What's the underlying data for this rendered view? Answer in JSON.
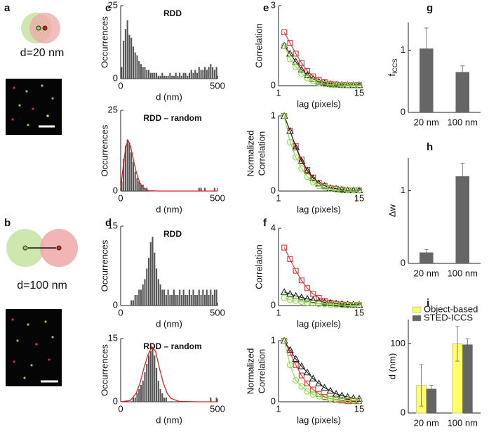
{
  "schematics": [
    {
      "label": "a",
      "caption": "d=20 nm"
    },
    {
      "label": "b",
      "caption": "d=100 nm"
    }
  ],
  "chart_data": [
    {
      "type": "histogram",
      "label": "c",
      "title": "RDD",
      "xlabel": "d (nm)",
      "ylabel": "Occurrences",
      "color": "#555555",
      "bins": [
        0,
        10,
        20,
        30,
        40,
        50,
        60,
        70,
        80,
        90,
        100,
        110,
        120,
        130,
        140,
        150,
        160,
        170,
        180,
        190,
        200,
        210,
        220,
        230,
        240,
        250,
        260,
        270,
        280,
        290,
        300,
        310,
        320,
        330,
        340,
        350,
        360,
        370,
        380,
        390,
        400,
        410,
        420,
        430,
        440,
        450,
        460,
        470,
        480,
        490,
        500
      ],
      "values": [
        4,
        13,
        17,
        20,
        15,
        14,
        11,
        9,
        8,
        6,
        5,
        4,
        4,
        3,
        3,
        2,
        2,
        2,
        2,
        1,
        1,
        2,
        1,
        1,
        1,
        2,
        1,
        1,
        2,
        1,
        2,
        1,
        2,
        2,
        1,
        2,
        3,
        2,
        3,
        2,
        4,
        3,
        3,
        4,
        3,
        4,
        5,
        4,
        3,
        4
      ],
      "xlim": [
        0,
        500
      ],
      "ylim": [
        0,
        25
      ],
      "xticks": [
        0,
        500
      ],
      "yticks": [
        0,
        25
      ]
    },
    {
      "type": "histogram",
      "title": "RDD – random",
      "xlabel": "d (nm)",
      "ylabel": "Occurrences",
      "color": "#555555",
      "bins": [
        0,
        10,
        20,
        30,
        40,
        50,
        60,
        70,
        80,
        90,
        100,
        110,
        120,
        130,
        140,
        150,
        160,
        170,
        180,
        190,
        200,
        210,
        220,
        230,
        240,
        250,
        260,
        270,
        280,
        290,
        300,
        310,
        320,
        330,
        340,
        350,
        360,
        370,
        380,
        390,
        400,
        410,
        420,
        430,
        440,
        450,
        460,
        470,
        480,
        490,
        500
      ],
      "values": [
        3,
        10,
        14,
        16,
        15,
        12,
        9,
        6,
        4,
        3,
        2,
        2,
        1,
        1,
        0,
        0,
        0,
        0,
        0,
        0,
        0,
        0,
        0,
        0,
        0,
        0,
        0,
        0,
        0,
        0,
        0,
        0,
        0,
        0,
        0,
        0,
        0,
        0,
        0,
        0,
        1,
        1,
        0,
        1,
        0,
        0,
        0,
        0,
        1,
        0
      ],
      "fit": {
        "color": "#dd2222",
        "x": [
          0,
          10,
          20,
          30,
          40,
          50,
          60,
          70,
          80,
          90,
          100,
          110,
          120,
          130,
          140,
          150,
          200,
          300,
          500
        ],
        "values": [
          1,
          6,
          11,
          14.5,
          15.5,
          14,
          11.5,
          8.5,
          6,
          4,
          2.5,
          1.5,
          0.8,
          0.4,
          0.2,
          0.1,
          0,
          0,
          0
        ]
      },
      "xlim": [
        0,
        500
      ],
      "ylim": [
        0,
        25
      ],
      "xticks": [
        0,
        500
      ],
      "yticks": [
        0,
        25
      ]
    },
    {
      "type": "histogram",
      "label": "d",
      "title": "RDD",
      "xlabel": "d (nm)",
      "ylabel": "Occurrences",
      "color": "#555555",
      "bins": [
        0,
        10,
        20,
        30,
        40,
        50,
        60,
        70,
        80,
        90,
        100,
        110,
        120,
        130,
        140,
        150,
        160,
        170,
        180,
        190,
        200,
        210,
        220,
        230,
        240,
        250,
        260,
        270,
        280,
        290,
        300,
        310,
        320,
        330,
        340,
        350,
        360,
        370,
        380,
        390,
        400,
        410,
        420,
        430,
        440,
        450,
        460,
        470,
        480,
        490,
        500
      ],
      "values": [
        0,
        0,
        0,
        0,
        0,
        1,
        1,
        2,
        2,
        3,
        3,
        4,
        5,
        7,
        9,
        12,
        13,
        10,
        7,
        5,
        4,
        3,
        3,
        2,
        3,
        2,
        2,
        3,
        2,
        2,
        3,
        2,
        3,
        2,
        2,
        3,
        2,
        3,
        2,
        2,
        3,
        2,
        3,
        2,
        3,
        2,
        3,
        2,
        3,
        3
      ],
      "xlim": [
        0,
        500
      ],
      "ylim": [
        0,
        15
      ],
      "xticks": [
        0,
        500
      ],
      "yticks": [
        0,
        15
      ]
    },
    {
      "type": "histogram",
      "title": "RDD – random",
      "xlabel": "d (nm)",
      "ylabel": "Occurrences",
      "color": "#555555",
      "bins": [
        0,
        10,
        20,
        30,
        40,
        50,
        60,
        70,
        80,
        90,
        100,
        110,
        120,
        130,
        140,
        150,
        160,
        170,
        180,
        190,
        200,
        210,
        220,
        230,
        240,
        250,
        260,
        270,
        280,
        290,
        300,
        310,
        320,
        330,
        340,
        350,
        360,
        370,
        380,
        390,
        400,
        410,
        420,
        430,
        440,
        450,
        460,
        470,
        480,
        490,
        500
      ],
      "values": [
        0,
        0,
        0,
        0,
        0,
        0,
        1,
        1,
        2,
        3,
        4,
        5,
        7,
        9,
        11,
        12,
        13,
        11,
        8,
        5,
        3,
        2,
        1,
        1,
        0,
        0,
        0,
        0,
        0,
        0,
        0,
        0,
        0,
        0,
        0,
        0,
        0,
        0,
        0,
        0,
        0,
        0,
        0,
        0,
        0,
        0,
        1,
        0,
        0,
        1
      ],
      "fit": {
        "color": "#dd2222",
        "x": [
          0,
          50,
          80,
          100,
          120,
          140,
          160,
          180,
          200,
          220,
          240,
          260,
          300,
          400,
          500
        ],
        "values": [
          0,
          0.3,
          2,
          4.5,
          8,
          11,
          13,
          12,
          8,
          4.5,
          2,
          0.8,
          0.1,
          0,
          0
        ]
      },
      "xlim": [
        0,
        500
      ],
      "ylim": [
        0,
        15
      ],
      "xticks": [
        0,
        500
      ],
      "yticks": [
        0,
        15
      ]
    },
    {
      "type": "line",
      "label": "e",
      "xlabel": "lag (pixels)",
      "ylabel": [
        "Correlation"
      ],
      "x": [
        2,
        3,
        4,
        5,
        6,
        7,
        8,
        9,
        10,
        11,
        12,
        13,
        14,
        15
      ],
      "series": [
        {
          "color": "#dd3333",
          "marker": "square",
          "values": [
            2.0,
            1.6,
            1.2,
            0.85,
            0.55,
            0.35,
            0.22,
            0.13,
            0.08,
            0.05,
            0.03,
            0.02,
            0.02,
            0.02
          ]
        },
        {
          "color": "#222222",
          "marker": "triangle",
          "values": [
            1.5,
            1.2,
            0.9,
            0.6,
            0.4,
            0.25,
            0.15,
            0.1,
            0.06,
            0.04,
            0.03,
            0.02,
            0.02,
            0.02
          ]
        },
        {
          "color": "#88dd44",
          "marker": "circle",
          "values": [
            1.5,
            1.0,
            0.7,
            0.45,
            0.28,
            0.17,
            0.1,
            0.06,
            0.04,
            0.03,
            0.02,
            0.02,
            0.01,
            0.01
          ]
        }
      ],
      "xlim": [
        1,
        15
      ],
      "ylim": [
        0,
        3
      ],
      "xticks": [
        1,
        15
      ],
      "yticks": [
        0,
        3
      ]
    },
    {
      "type": "line",
      "xlabel": "lag (pixels)",
      "ylabel": [
        "Normalized",
        "Correlation"
      ],
      "x": [
        2,
        3,
        4,
        5,
        6,
        7,
        8,
        9,
        10,
        11,
        12,
        13,
        14,
        15
      ],
      "series": [
        {
          "color": "#dd3333",
          "marker": "square",
          "values": [
            1,
            0.8,
            0.6,
            0.42,
            0.28,
            0.18,
            0.11,
            0.07,
            0.04,
            0.03,
            0.02,
            0.01,
            0.01,
            0.01
          ]
        },
        {
          "color": "#222222",
          "marker": "triangle",
          "values": [
            1,
            0.8,
            0.58,
            0.4,
            0.27,
            0.17,
            0.1,
            0.07,
            0.04,
            0.03,
            0.02,
            0.01,
            0.01,
            0.01
          ]
        },
        {
          "color": "#88dd44",
          "marker": "circle",
          "values": [
            1,
            0.65,
            0.45,
            0.3,
            0.19,
            0.12,
            0.07,
            0.05,
            0.03,
            0.02,
            0.01,
            0.01,
            0.01,
            0.01
          ]
        }
      ],
      "xlim": [
        1,
        15
      ],
      "ylim": [
        0,
        1
      ],
      "xticks": [
        1,
        15
      ],
      "yticks": [
        0,
        1
      ]
    },
    {
      "type": "line",
      "label": "f",
      "xlabel": "lag (pixels)",
      "ylabel": [
        "Correlation"
      ],
      "x": [
        2,
        3,
        4,
        5,
        6,
        7,
        8,
        9,
        10,
        11,
        12,
        13,
        14,
        15
      ],
      "series": [
        {
          "color": "#dd3333",
          "marker": "square",
          "values": [
            3.0,
            2.4,
            1.8,
            1.3,
            0.9,
            0.6,
            0.4,
            0.25,
            0.15,
            0.1,
            0.06,
            0.04,
            0.03,
            0.02
          ]
        },
        {
          "color": "#222222",
          "marker": "triangle",
          "values": [
            0.7,
            0.6,
            0.5,
            0.42,
            0.35,
            0.28,
            0.22,
            0.17,
            0.13,
            0.1,
            0.08,
            0.06,
            0.05,
            0.04
          ]
        },
        {
          "color": "#88dd44",
          "marker": "circle",
          "values": [
            0.4,
            0.3,
            0.25,
            0.2,
            0.15,
            0.12,
            0.09,
            0.07,
            0.05,
            0.04,
            0.03,
            0.02,
            0.02,
            0.02
          ]
        }
      ],
      "xlim": [
        1,
        15
      ],
      "ylim": [
        0,
        4
      ],
      "xticks": [
        1,
        15
      ],
      "yticks": [
        0,
        4
      ]
    },
    {
      "type": "line",
      "xlabel": "lag (pixels)",
      "ylabel": [
        "Normalized",
        "Correlation"
      ],
      "x": [
        2,
        3,
        4,
        5,
        6,
        7,
        8,
        9,
        10,
        11,
        12,
        13,
        14,
        15
      ],
      "series": [
        {
          "color": "#dd3333",
          "marker": "square",
          "values": [
            1,
            0.8,
            0.6,
            0.43,
            0.3,
            0.2,
            0.13,
            0.08,
            0.05,
            0.03,
            0.02,
            0.01,
            0.01,
            0.01
          ]
        },
        {
          "color": "#222222",
          "marker": "triangle",
          "values": [
            1,
            0.85,
            0.7,
            0.58,
            0.48,
            0.38,
            0.3,
            0.23,
            0.18,
            0.13,
            0.1,
            0.08,
            0.06,
            0.05
          ]
        },
        {
          "color": "#88dd44",
          "marker": "circle",
          "values": [
            1,
            0.6,
            0.35,
            0.25,
            0.17,
            0.12,
            0.09,
            0.07,
            0.05,
            0.04,
            0.03,
            0.03,
            0.02,
            0.02
          ]
        }
      ],
      "xlim": [
        1,
        15
      ],
      "ylim": [
        0,
        1
      ],
      "xticks": [
        1,
        15
      ],
      "yticks": [
        0,
        1
      ]
    },
    {
      "type": "bar",
      "label": "g",
      "ylabel": {
        "main": "f",
        "sub": "ICCS"
      },
      "categories": [
        "20 nm",
        "100 nm"
      ],
      "values": [
        1.03,
        0.65
      ],
      "errors": [
        0.33,
        0.1
      ],
      "color": "#666666",
      "ylim": [
        0,
        1.45
      ],
      "yticks": [
        0,
        1
      ]
    },
    {
      "type": "bar",
      "label": "h",
      "ylabel": "Δw",
      "categories": [
        "20 nm",
        "100 nm"
      ],
      "values": [
        0.15,
        1.2
      ],
      "errors": [
        0.04,
        0.18
      ],
      "color": "#666666",
      "ylim": [
        0,
        1.45
      ],
      "yticks": [
        0,
        1
      ]
    },
    {
      "type": "bar",
      "label": "i",
      "ylabel": "d (nm)",
      "categories": [
        "20 nm",
        "100 nm"
      ],
      "series": [
        {
          "name": "Object-based",
          "color": "#ffff66",
          "values": [
            40,
            100
          ],
          "errors": [
            30,
            25
          ]
        },
        {
          "name": "STED-ICCS",
          "color": "#666666",
          "values": [
            35,
            99
          ],
          "errors": [
            5,
            8
          ]
        }
      ],
      "ylim": [
        0,
        135
      ],
      "yticks": [
        0,
        100
      ],
      "legend": "upper left"
    }
  ]
}
